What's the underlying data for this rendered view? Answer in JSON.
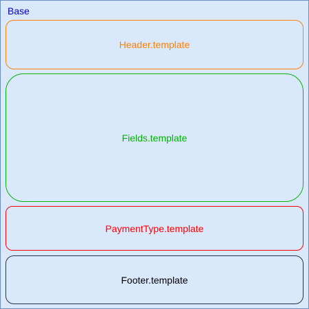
{
  "base": {
    "label": "Base",
    "label_color": "#0000cc",
    "fill_color": "#dae8fc",
    "border_color": "#6c8ebf"
  },
  "blocks": [
    {
      "label": "Header.template",
      "color": "#ff8000"
    },
    {
      "label": "Fields.template",
      "color": "#00b300"
    },
    {
      "label": "PaymentType.template",
      "color": "#ff0000"
    },
    {
      "label": "Footer.template",
      "color": "#000000",
      "border_color": "#1f3349"
    }
  ]
}
